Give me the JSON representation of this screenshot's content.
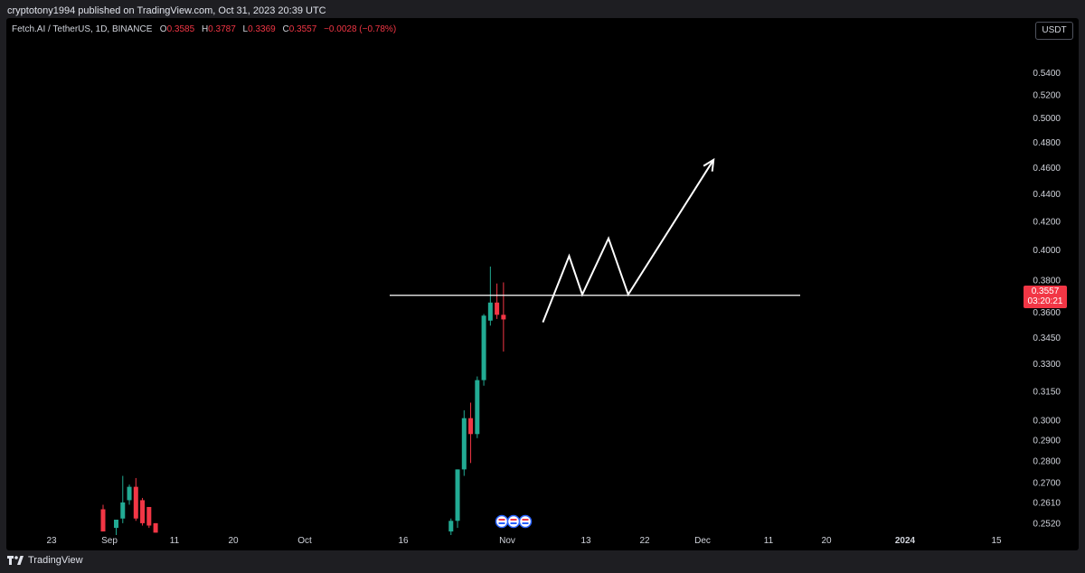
{
  "header": {
    "published": "cryptotony1994 published on TradingView.com, Oct 31, 2023 20:39 UTC"
  },
  "legend": {
    "symbol": "Fetch.AI / TetherUS, 1D, BINANCE",
    "o_label": "O",
    "o_value": "0.3585",
    "h_label": "H",
    "h_value": "0.3787",
    "l_label": "L",
    "l_value": "0.3369",
    "c_label": "C",
    "c_value": "0.3557",
    "change": "−0.0028 (−0.78%)"
  },
  "currency": "USDT",
  "last_price": {
    "price": "0.3557",
    "countdown": "03:20:21"
  },
  "footer": {
    "brand": "TradingView"
  },
  "colors": {
    "up": "#22ab94",
    "down": "#f23645",
    "background": "#000000",
    "drawing": "#ffffff"
  },
  "chart_data": {
    "type": "candlestick",
    "symbol": "Fetch.AI / TetherUS",
    "interval": "1D",
    "exchange": "BINANCE",
    "y_scale": "log",
    "ylim": [
      0.247,
      0.552
    ],
    "y_ticks": [
      "0.5400",
      "0.5200",
      "0.5000",
      "0.4800",
      "0.4600",
      "0.4400",
      "0.4200",
      "0.4000",
      "0.3800",
      "0.3600",
      "0.3450",
      "0.3300",
      "0.3150",
      "0.3000",
      "0.2900",
      "0.2800",
      "0.2700",
      "0.2610",
      "0.2520"
    ],
    "x_ticks": [
      "23",
      "Sep",
      "11",
      "20",
      "Oct",
      "16",
      "Nov",
      "13",
      "22",
      "Dec",
      "11",
      "20",
      "2024",
      "15"
    ],
    "candles": [
      {
        "date": "2023-08-31",
        "o": 0.258,
        "h": 0.26,
        "l": 0.2485,
        "c": 0.2485
      },
      {
        "date": "2023-09-02",
        "o": 0.25,
        "h": 0.2535,
        "l": 0.247,
        "c": 0.2535
      },
      {
        "date": "2023-09-03",
        "o": 0.254,
        "h": 0.273,
        "l": 0.252,
        "c": 0.261
      },
      {
        "date": "2023-09-04",
        "o": 0.262,
        "h": 0.269,
        "l": 0.26,
        "c": 0.268
      },
      {
        "date": "2023-09-05",
        "o": 0.268,
        "h": 0.272,
        "l": 0.253,
        "c": 0.254
      },
      {
        "date": "2023-09-06",
        "o": 0.262,
        "h": 0.263,
        "l": 0.251,
        "c": 0.252
      },
      {
        "date": "2023-09-07",
        "o": 0.259,
        "h": 0.259,
        "l": 0.25,
        "c": 0.251
      },
      {
        "date": "2023-09-08",
        "o": 0.252,
        "h": 0.252,
        "l": 0.248,
        "c": 0.248
      },
      {
        "date": "2023-10-23",
        "o": 0.2485,
        "h": 0.254,
        "l": 0.247,
        "c": 0.253
      },
      {
        "date": "2023-10-24",
        "o": 0.253,
        "h": 0.276,
        "l": 0.25,
        "c": 0.276
      },
      {
        "date": "2023-10-25",
        "o": 0.276,
        "h": 0.305,
        "l": 0.273,
        "c": 0.301
      },
      {
        "date": "2023-10-26",
        "o": 0.301,
        "h": 0.309,
        "l": 0.279,
        "c": 0.293
      },
      {
        "date": "2023-10-27",
        "o": 0.293,
        "h": 0.323,
        "l": 0.291,
        "c": 0.321
      },
      {
        "date": "2023-10-28",
        "o": 0.321,
        "h": 0.359,
        "l": 0.318,
        "c": 0.358
      },
      {
        "date": "2023-10-29",
        "o": 0.355,
        "h": 0.389,
        "l": 0.352,
        "c": 0.366
      },
      {
        "date": "2023-10-30",
        "o": 0.366,
        "h": 0.378,
        "l": 0.356,
        "c": 0.3585
      },
      {
        "date": "2023-10-31",
        "o": 0.3585,
        "h": 0.3787,
        "l": 0.3369,
        "c": 0.3557
      }
    ],
    "drawings": {
      "horizontal_level": 0.3705,
      "projection_path": [
        {
          "date": "2023-11-06",
          "price": 0.354
        },
        {
          "date": "2023-11-10",
          "price": 0.396
        },
        {
          "date": "2023-11-12",
          "price": 0.371
        },
        {
          "date": "2023-11-16",
          "price": 0.408
        },
        {
          "date": "2023-11-19",
          "price": 0.371
        },
        {
          "date": "2023-12-02",
          "price": 0.466
        }
      ]
    }
  }
}
